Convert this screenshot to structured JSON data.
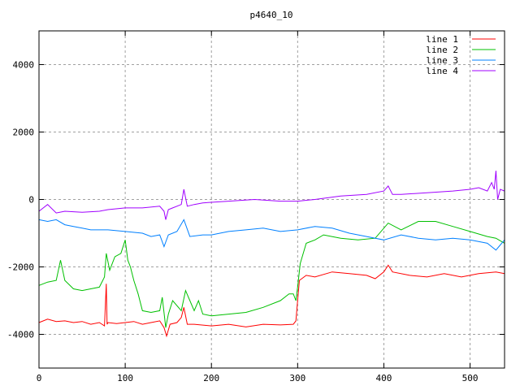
{
  "chart_data": {
    "type": "line",
    "title": "p4640_10",
    "xlabel": "",
    "ylabel": "",
    "xlim": [
      0,
      540
    ],
    "ylim": [
      -5000,
      5000
    ],
    "xticks": [
      0,
      100,
      200,
      300,
      400,
      500
    ],
    "yticks": [
      -4000,
      -2000,
      0,
      2000,
      4000
    ],
    "grid": true,
    "legend_position": "top-right",
    "series": [
      {
        "name": "line 1",
        "color": "#ff0000",
        "x": [
          0,
          10,
          20,
          30,
          40,
          50,
          60,
          70,
          76,
          78,
          79,
          80,
          90,
          100,
          110,
          120,
          130,
          140,
          145,
          148,
          152,
          160,
          165,
          168,
          172,
          180,
          200,
          220,
          240,
          260,
          280,
          295,
          298,
          300,
          302,
          310,
          320,
          340,
          360,
          380,
          390,
          400,
          405,
          410,
          430,
          450,
          470,
          490,
          510,
          530,
          540
        ],
        "y": [
          -3650,
          -3550,
          -3620,
          -3600,
          -3650,
          -3620,
          -3700,
          -3650,
          -3750,
          -2500,
          -3700,
          -3650,
          -3680,
          -3650,
          -3620,
          -3700,
          -3650,
          -3600,
          -3800,
          -4050,
          -3700,
          -3650,
          -3500,
          -3200,
          -3700,
          -3700,
          -3750,
          -3700,
          -3780,
          -3700,
          -3720,
          -3700,
          -3600,
          -3000,
          -2400,
          -2250,
          -2300,
          -2150,
          -2200,
          -2250,
          -2350,
          -2150,
          -1950,
          -2150,
          -2250,
          -2300,
          -2200,
          -2300,
          -2200,
          -2150,
          -2200
        ]
      },
      {
        "name": "line 2",
        "color": "#00c000",
        "x": [
          0,
          10,
          20,
          25,
          30,
          40,
          50,
          60,
          70,
          76,
          78,
          82,
          88,
          95,
          100,
          103,
          106,
          110,
          115,
          120,
          130,
          140,
          143,
          147,
          150,
          155,
          165,
          170,
          175,
          180,
          185,
          190,
          200,
          220,
          240,
          260,
          280,
          290,
          295,
          298,
          300,
          303,
          310,
          320,
          330,
          350,
          370,
          390,
          405,
          420,
          440,
          460,
          480,
          500,
          520,
          530,
          540
        ],
        "y": [
          -2550,
          -2450,
          -2400,
          -1800,
          -2400,
          -2650,
          -2700,
          -2650,
          -2600,
          -2300,
          -1600,
          -2100,
          -1700,
          -1600,
          -1200,
          -1800,
          -2000,
          -2400,
          -2800,
          -3300,
          -3350,
          -3300,
          -2900,
          -3800,
          -3400,
          -3000,
          -3300,
          -2700,
          -3000,
          -3300,
          -3000,
          -3400,
          -3450,
          -3400,
          -3350,
          -3200,
          -3000,
          -2800,
          -2800,
          -3000,
          -2600,
          -1900,
          -1300,
          -1200,
          -1050,
          -1150,
          -1200,
          -1150,
          -700,
          -900,
          -650,
          -650,
          -800,
          -950,
          -1100,
          -1150,
          -1300
        ]
      },
      {
        "name": "line 3",
        "color": "#0080ff",
        "x": [
          0,
          10,
          20,
          30,
          40,
          50,
          60,
          80,
          100,
          120,
          130,
          140,
          145,
          150,
          160,
          168,
          175,
          190,
          200,
          220,
          240,
          260,
          280,
          300,
          320,
          340,
          360,
          380,
          400,
          420,
          440,
          460,
          480,
          500,
          520,
          530,
          535,
          540
        ],
        "y": [
          -600,
          -650,
          -600,
          -750,
          -800,
          -850,
          -900,
          -900,
          -950,
          -1000,
          -1100,
          -1050,
          -1400,
          -1050,
          -950,
          -600,
          -1100,
          -1050,
          -1050,
          -950,
          -900,
          -850,
          -950,
          -900,
          -800,
          -850,
          -1000,
          -1100,
          -1200,
          -1050,
          -1150,
          -1200,
          -1150,
          -1200,
          -1300,
          -1500,
          -1350,
          -1200
        ]
      },
      {
        "name": "line 4",
        "color": "#a000ff",
        "x": [
          0,
          10,
          20,
          30,
          50,
          70,
          80,
          100,
          120,
          140,
          145,
          147,
          150,
          155,
          165,
          168,
          172,
          180,
          190,
          220,
          250,
          280,
          300,
          320,
          350,
          380,
          400,
          405,
          410,
          420,
          450,
          480,
          500,
          510,
          520,
          525,
          528,
          530,
          532,
          535,
          540
        ],
        "y": [
          -350,
          -150,
          -400,
          -350,
          -380,
          -350,
          -300,
          -250,
          -250,
          -200,
          -350,
          -600,
          -300,
          -250,
          -150,
          300,
          -200,
          -150,
          -100,
          -50,
          0,
          -50,
          -50,
          0,
          100,
          150,
          250,
          400,
          150,
          150,
          200,
          250,
          300,
          350,
          250,
          500,
          300,
          850,
          0,
          300,
          250
        ]
      }
    ]
  }
}
